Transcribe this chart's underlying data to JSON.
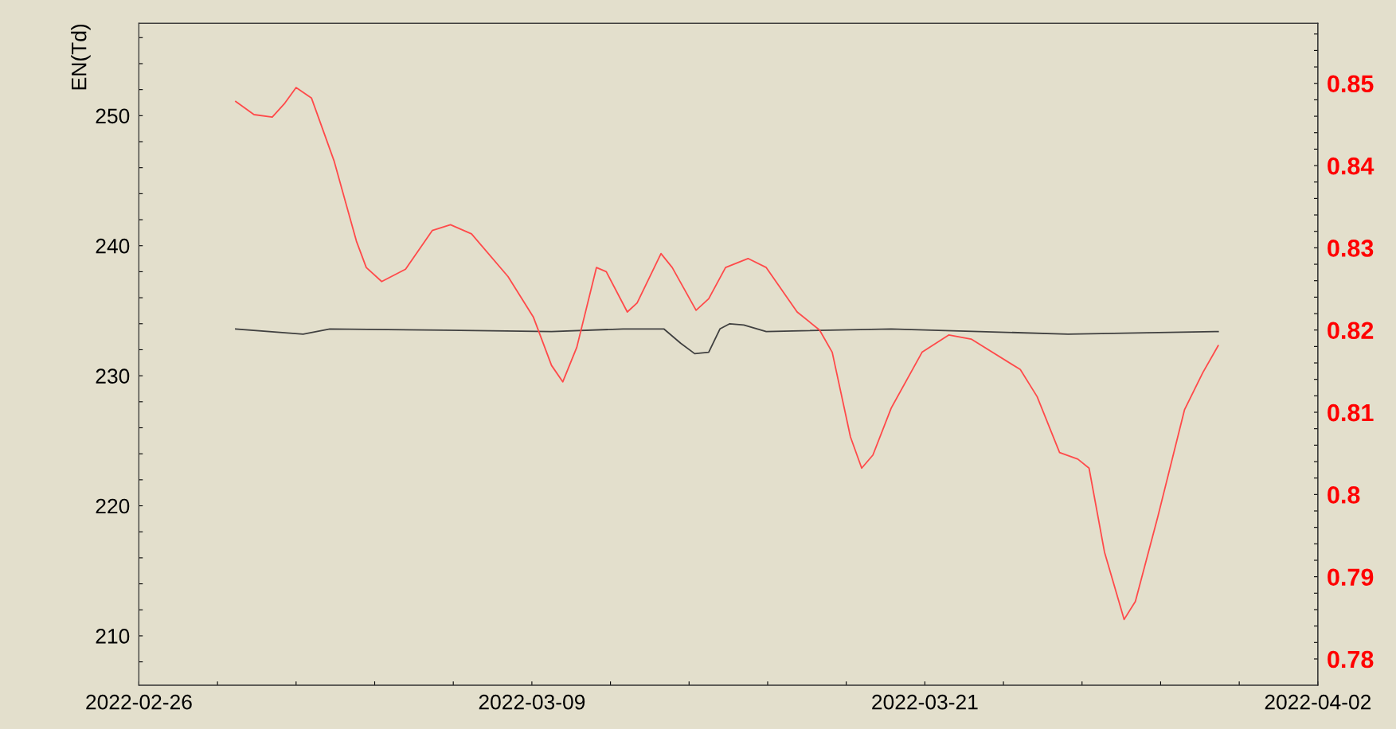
{
  "chart_data": {
    "type": "line",
    "ylabel": "EN(Td)",
    "xlim": [
      "2022-02-26T00:00",
      "2022-04-02T00:00"
    ],
    "xticks": [
      {
        "value": "2022-02-26T00:00",
        "label": "2022-02-26"
      },
      {
        "value": "2022-02-28T08:00",
        "label": null
      },
      {
        "value": "2022-03-02T16:00",
        "label": null
      },
      {
        "value": "2022-03-05T00:00",
        "label": null
      },
      {
        "value": "2022-03-07T08:00",
        "label": null
      },
      {
        "value": "2022-03-09T16:00",
        "label": "2022-03-09"
      },
      {
        "value": "2022-03-12T00:00",
        "label": null
      },
      {
        "value": "2022-03-14T08:00",
        "label": null
      },
      {
        "value": "2022-03-16T16:00",
        "label": null
      },
      {
        "value": "2022-03-19T00:00",
        "label": null
      },
      {
        "value": "2022-03-21T08:00",
        "label": "2022-03-21"
      },
      {
        "value": "2022-03-23T16:00",
        "label": null
      },
      {
        "value": "2022-03-26T00:00",
        "label": null
      },
      {
        "value": "2022-03-28T08:00",
        "label": null
      },
      {
        "value": "2022-03-30T16:00",
        "label": null
      },
      {
        "value": "2022-04-02T00:00",
        "label": "2022-04-02"
      }
    ],
    "ylim": [
      206.2,
      257.1
    ],
    "yticks": [
      {
        "value": 208,
        "label": null
      },
      210,
      {
        "value": 212,
        "label": null
      },
      {
        "value": 214,
        "label": null
      },
      {
        "value": 216,
        "label": null
      },
      {
        "value": 218,
        "label": null
      },
      220,
      {
        "value": 222,
        "label": null
      },
      {
        "value": 224,
        "label": null
      },
      {
        "value": 226,
        "label": null
      },
      {
        "value": 228,
        "label": null
      },
      230,
      {
        "value": 232,
        "label": null
      },
      {
        "value": 234,
        "label": null
      },
      {
        "value": 236,
        "label": null
      },
      {
        "value": 238,
        "label": null
      },
      240,
      {
        "value": 242,
        "label": null
      },
      {
        "value": 244,
        "label": null
      },
      {
        "value": 246,
        "label": null
      },
      {
        "value": 248,
        "label": null
      },
      250,
      {
        "value": 252,
        "label": null
      },
      {
        "value": 254,
        "label": null
      },
      {
        "value": 256,
        "label": null
      }
    ],
    "y2lim": [
      0.7768,
      0.8573
    ],
    "y2ticks": [
      0.78,
      {
        "value": 0.782,
        "label": null
      },
      {
        "value": 0.784,
        "label": null
      },
      {
        "value": 0.786,
        "label": null
      },
      {
        "value": 0.788,
        "label": null
      },
      0.79,
      {
        "value": 0.792,
        "label": null
      },
      {
        "value": 0.794,
        "label": null
      },
      {
        "value": 0.796,
        "label": null
      },
      {
        "value": 0.798,
        "label": null
      },
      0.8,
      {
        "value": 0.802,
        "label": null
      },
      {
        "value": 0.804,
        "label": null
      },
      {
        "value": 0.806,
        "label": null
      },
      {
        "value": 0.808,
        "label": null
      },
      0.81,
      {
        "value": 0.812,
        "label": null
      },
      {
        "value": 0.814,
        "label": null
      },
      {
        "value": 0.816,
        "label": null
      },
      {
        "value": 0.818,
        "label": null
      },
      0.82,
      {
        "value": 0.822,
        "label": null
      },
      {
        "value": 0.824,
        "label": null
      },
      {
        "value": 0.826,
        "label": null
      },
      {
        "value": 0.828,
        "label": null
      },
      0.83,
      {
        "value": 0.832,
        "label": null
      },
      {
        "value": 0.834,
        "label": null
      },
      {
        "value": 0.836,
        "label": null
      },
      {
        "value": 0.838,
        "label": null
      },
      0.84,
      {
        "value": 0.842,
        "label": null
      },
      {
        "value": 0.844,
        "label": null
      },
      {
        "value": 0.846,
        "label": null
      },
      {
        "value": 0.848,
        "label": null
      },
      0.85,
      {
        "value": 0.852,
        "label": null
      },
      {
        "value": 0.854,
        "label": null
      },
      {
        "value": 0.856,
        "label": null
      }
    ],
    "line_style": "solid",
    "marker": "none",
    "series": [
      {
        "color": "#404040",
        "x": [
          "2022-02-28T21:00",
          "2022-03-02T21:00",
          "2022-03-03T16:00",
          "2022-03-07T02:00",
          "2022-03-10T06:00",
          "2022-03-12T09:00",
          "2022-03-13T14:00",
          "2022-03-14T02:00",
          "2022-03-14T12:00",
          "2022-03-14T22:00",
          "2022-03-15T06:00",
          "2022-03-15T13:00",
          "2022-03-15T23:00",
          "2022-03-16T15:00",
          "2022-03-20T08:00",
          "2022-03-25T14:00",
          "2022-03-30T01:00"
        ],
        "values": [
          233.6,
          233.2,
          233.6,
          233.5,
          233.4,
          233.6,
          233.6,
          232.5,
          231.7,
          231.8,
          233.6,
          234.0,
          233.9,
          233.4,
          233.6,
          233.2,
          233.4
        ]
      },
      {
        "color": "#ff4a4a",
        "axis": "y2",
        "x": [
          "2022-02-28T21:00",
          "2022-03-01T10:00",
          "2022-03-01T23:00",
          "2022-03-02T08:00",
          "2022-03-02T16:00",
          "2022-03-03T03:00",
          "2022-03-03T19:00",
          "2022-03-04T11:00",
          "2022-03-04T18:00",
          "2022-03-05T05:00",
          "2022-03-05T22:00",
          "2022-03-06T17:00",
          "2022-03-07T06:00",
          "2022-03-07T21:00",
          "2022-03-08T23:00",
          "2022-03-09T17:00",
          "2022-03-10T06:00",
          "2022-03-10T14:00",
          "2022-03-11T00:00",
          "2022-03-11T14:00",
          "2022-03-11T21:00",
          "2022-03-12T12:00",
          "2022-03-12T19:00",
          "2022-03-13T12:00",
          "2022-03-13T20:00",
          "2022-03-14T13:00",
          "2022-03-14T22:00",
          "2022-03-15T10:00",
          "2022-03-16T02:00",
          "2022-03-16T15:00",
          "2022-03-17T13:00",
          "2022-03-18T05:00",
          "2022-03-18T14:00",
          "2022-03-19T03:00",
          "2022-03-19T11:00",
          "2022-03-19T19:00",
          "2022-03-20T08:00",
          "2022-03-21T06:00",
          "2022-03-22T01:00",
          "2022-03-22T17:00",
          "2022-03-24T04:00",
          "2022-03-24T16:00",
          "2022-03-25T08:00",
          "2022-03-25T21:00",
          "2022-03-26T05:00",
          "2022-03-26T16:00",
          "2022-03-27T06:00",
          "2022-03-27T14:00",
          "2022-03-28T06:00",
          "2022-03-29T01:00",
          "2022-03-29T14:00",
          "2022-03-30T01:00"
        ],
        "values": [
          0.8478,
          0.8462,
          0.8459,
          0.8476,
          0.8495,
          0.8482,
          0.8406,
          0.8308,
          0.8276,
          0.8259,
          0.8274,
          0.8321,
          0.8328,
          0.8317,
          0.8265,
          0.8216,
          0.8157,
          0.8137,
          0.8179,
          0.8276,
          0.8271,
          0.8222,
          0.8233,
          0.8293,
          0.8276,
          0.8224,
          0.8238,
          0.8276,
          0.8287,
          0.8276,
          0.8222,
          0.82,
          0.8173,
          0.807,
          0.8032,
          0.8048,
          0.8105,
          0.8173,
          0.8194,
          0.8189,
          0.8152,
          0.8119,
          0.8051,
          0.8043,
          0.8032,
          0.793,
          0.7848,
          0.787,
          0.7973,
          0.8103,
          0.8148,
          0.8181
        ]
      }
    ]
  }
}
